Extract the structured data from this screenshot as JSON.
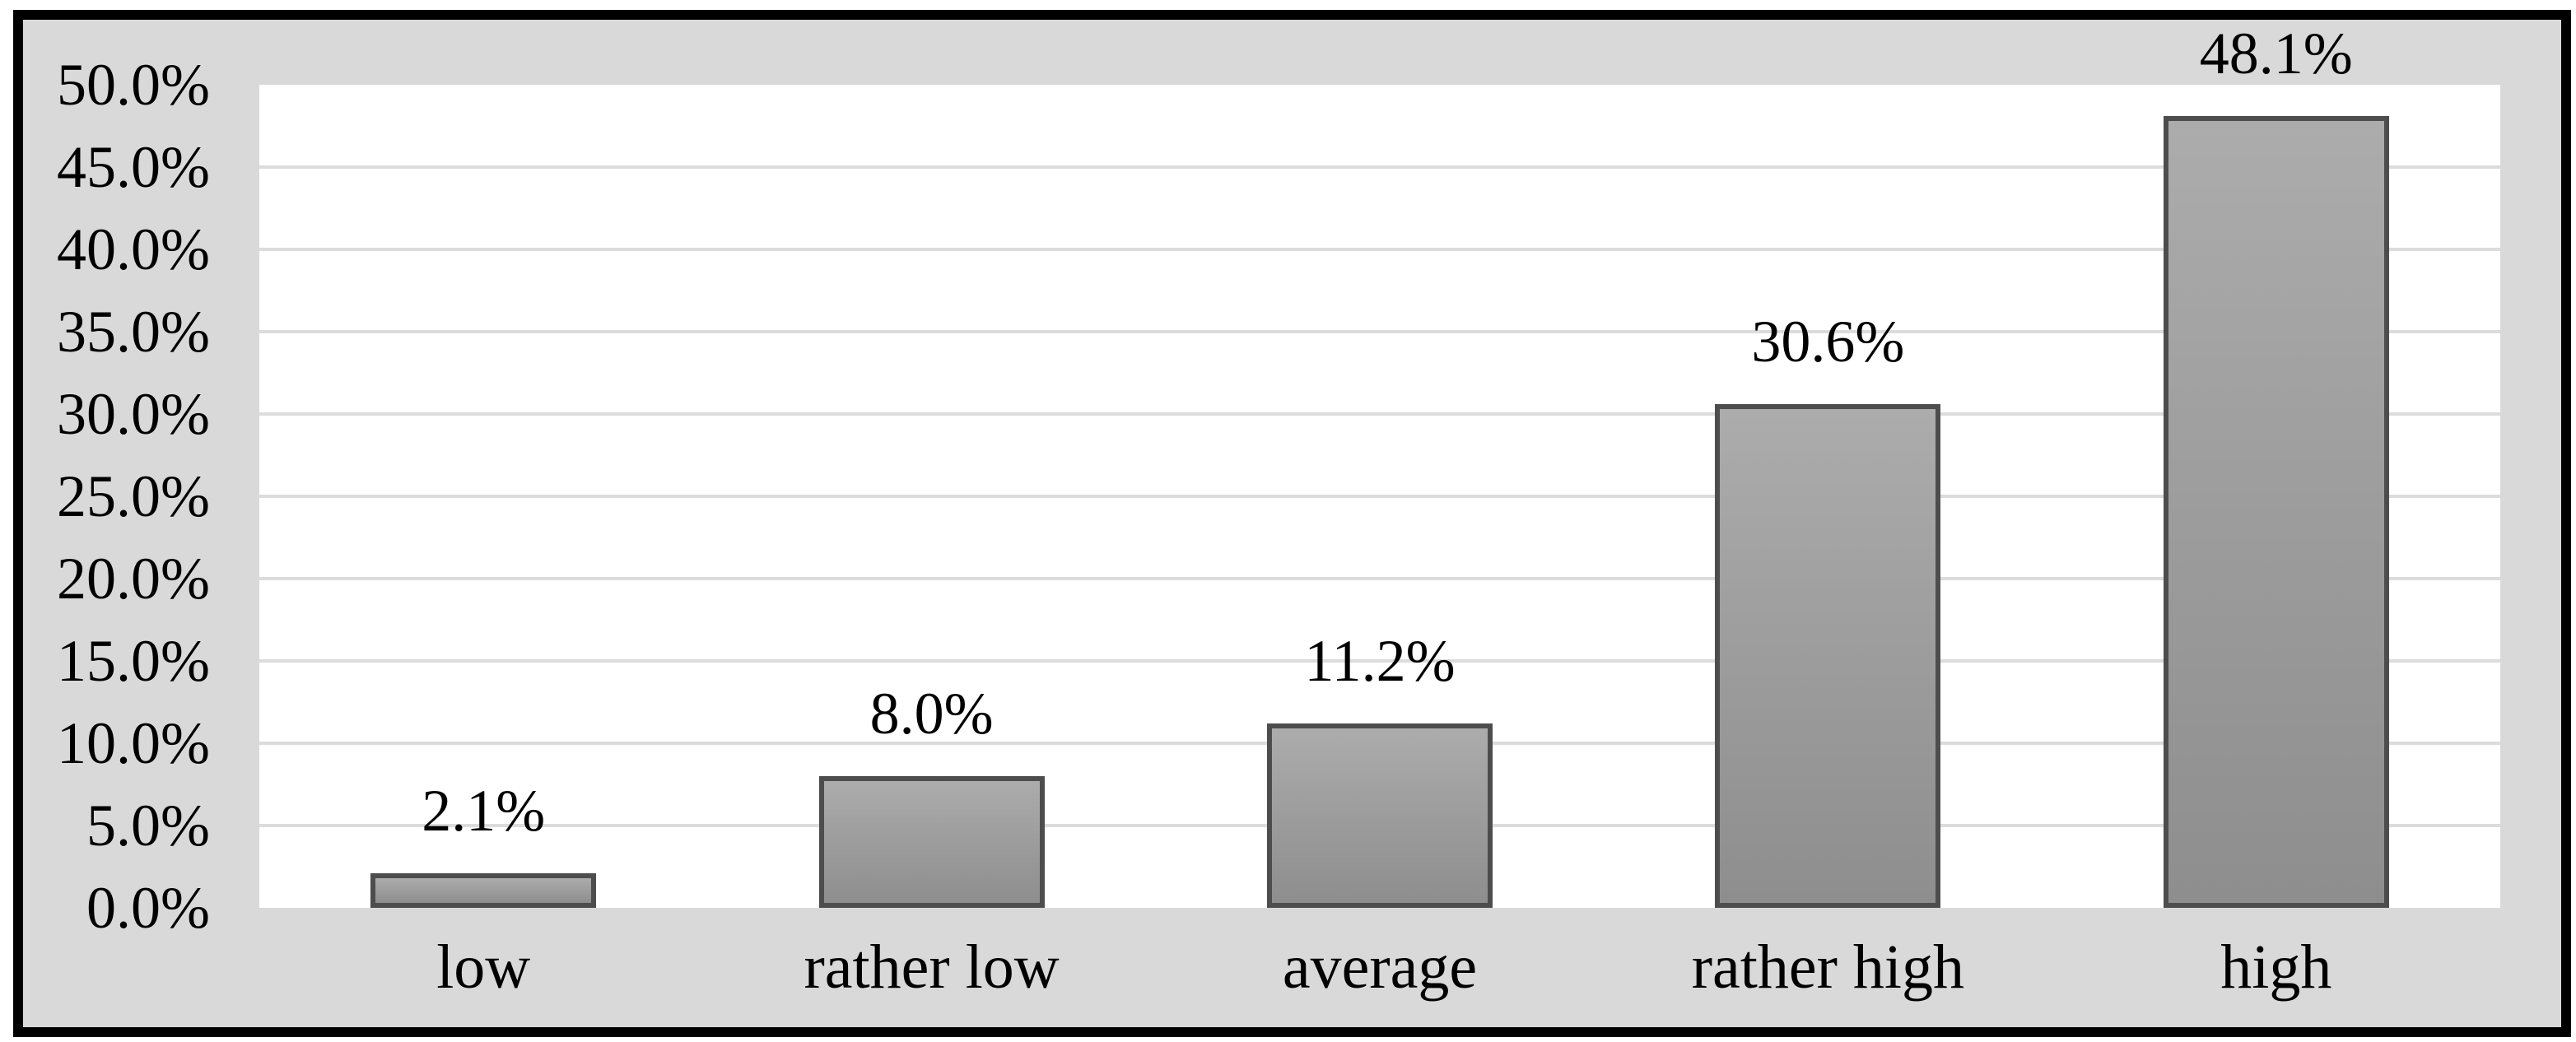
{
  "chart_data": {
    "type": "bar",
    "title": "",
    "xlabel": "",
    "ylabel": "",
    "categories": [
      "low",
      "rather low",
      "average",
      "rather high",
      "high"
    ],
    "values": [
      2.1,
      8.0,
      11.2,
      30.6,
      48.1
    ],
    "value_labels": [
      "2.1%",
      "8.0%",
      "11.2%",
      "30.6%",
      "48.1%"
    ],
    "y_ticks": [
      "50.0%",
      "45.0%",
      "40.0%",
      "35.0%",
      "30.0%",
      "25.0%",
      "20.0%",
      "15.0%",
      "10.0%",
      "5.0%",
      "0.0%"
    ],
    "ylim": [
      0,
      50
    ],
    "y_step": 5,
    "grid": true,
    "legend": "none",
    "series_count": 1
  },
  "colors": {
    "figure_margin": "#ffffff",
    "frame_border": "#000000",
    "chart_background": "#d9d9d9",
    "plot_background": "#ffffff",
    "gridline": "#dcdcdc",
    "bar_fill_light": "#acacac",
    "bar_fill_dark": "#8e8e8e",
    "bar_border": "#4d4d4d",
    "text": "#000000"
  }
}
